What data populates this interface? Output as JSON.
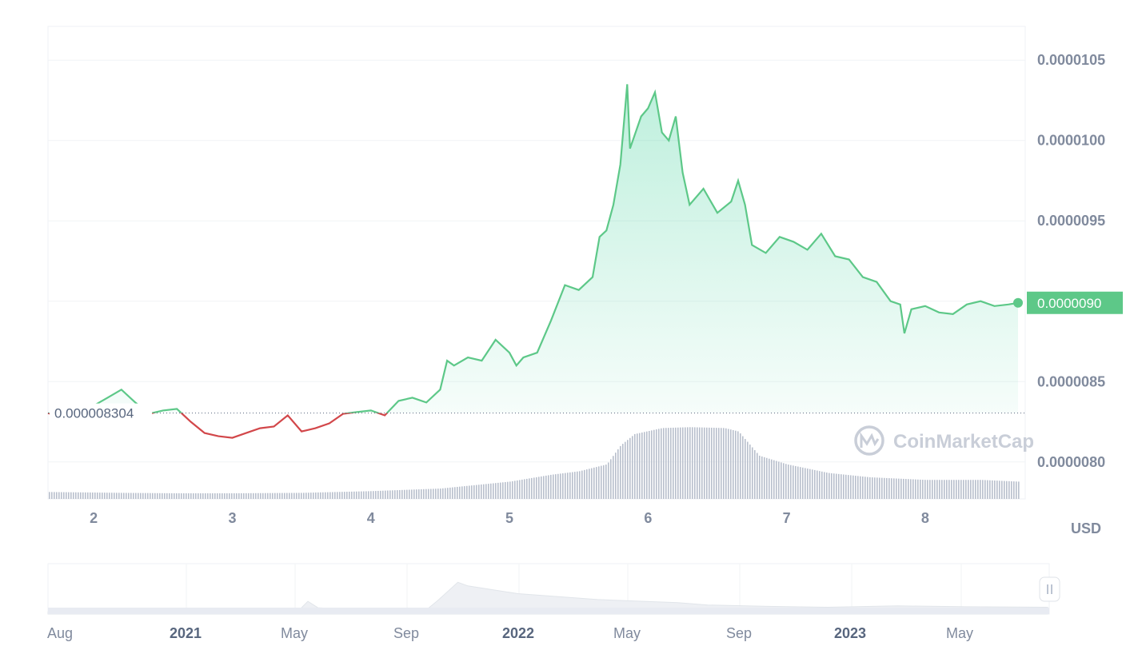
{
  "chart_data": {
    "type": "line",
    "currency": "USD",
    "watermark": "CoinMarketCap",
    "reference_line_value": 8.304e-06,
    "reference_label": "0.000008304",
    "current_price_label": "0.0000090",
    "y_ticks": [
      "0.0000105",
      "0.0000100",
      "0.0000095",
      "0.0000090",
      "0.0000085",
      "0.0000080"
    ],
    "y_tick_values": [
      1.05e-05,
      1e-05,
      9.5e-06,
      9e-06,
      8.5e-06,
      8e-06
    ],
    "ylim": [
      7.77e-06,
      1.071e-05
    ],
    "x_ticks": [
      "2",
      "3",
      "4",
      "5",
      "6",
      "7",
      "8"
    ],
    "x_tick_values": [
      2,
      3,
      4,
      5,
      6,
      7,
      8
    ],
    "xlim": [
      1.67,
      8.67
    ],
    "series": [
      {
        "values": [
          [
            1.67,
            8.304e-06
          ],
          [
            1.8,
            8.27e-06
          ],
          [
            2.0,
            8.35e-06
          ],
          [
            2.1,
            8.4e-06
          ],
          [
            2.2,
            8.45e-06
          ],
          [
            2.3,
            8.37e-06
          ],
          [
            2.4,
            8.3e-06
          ],
          [
            2.5,
            8.32e-06
          ],
          [
            2.6,
            8.33e-06
          ],
          [
            2.7,
            8.25e-06
          ],
          [
            2.8,
            8.18e-06
          ],
          [
            2.9,
            8.16e-06
          ],
          [
            3.0,
            8.15e-06
          ],
          [
            3.1,
            8.18e-06
          ],
          [
            3.2,
            8.21e-06
          ],
          [
            3.3,
            8.22e-06
          ],
          [
            3.4,
            8.29e-06
          ],
          [
            3.5,
            8.19e-06
          ],
          [
            3.6,
            8.21e-06
          ],
          [
            3.7,
            8.24e-06
          ],
          [
            3.8,
            8.3e-06
          ],
          [
            3.9,
            8.31e-06
          ],
          [
            4.0,
            8.32e-06
          ],
          [
            4.1,
            8.29e-06
          ],
          [
            4.2,
            8.38e-06
          ],
          [
            4.3,
            8.4e-06
          ],
          [
            4.4,
            8.37e-06
          ],
          [
            4.5,
            8.45e-06
          ],
          [
            4.55,
            8.63e-06
          ],
          [
            4.6,
            8.6e-06
          ],
          [
            4.7,
            8.65e-06
          ],
          [
            4.8,
            8.63e-06
          ],
          [
            4.9,
            8.76e-06
          ],
          [
            5.0,
            8.68e-06
          ],
          [
            5.05,
            8.6e-06
          ],
          [
            5.1,
            8.65e-06
          ],
          [
            5.2,
            8.68e-06
          ],
          [
            5.3,
            8.88e-06
          ],
          [
            5.4,
            9.1e-06
          ],
          [
            5.5,
            9.07e-06
          ],
          [
            5.6,
            9.15e-06
          ],
          [
            5.65,
            9.4e-06
          ],
          [
            5.7,
            9.44e-06
          ],
          [
            5.75,
            9.6e-06
          ],
          [
            5.8,
            9.85e-06
          ],
          [
            5.85,
            1.035e-05
          ],
          [
            5.87,
            9.95e-06
          ],
          [
            5.95,
            1.015e-05
          ],
          [
            6.0,
            1.02e-05
          ],
          [
            6.05,
            1.03e-05
          ],
          [
            6.1,
            1.005e-05
          ],
          [
            6.15,
            1e-05
          ],
          [
            6.2,
            1.015e-05
          ],
          [
            6.25,
            9.8e-06
          ],
          [
            6.3,
            9.6e-06
          ],
          [
            6.4,
            9.7e-06
          ],
          [
            6.5,
            9.55e-06
          ],
          [
            6.6,
            9.62e-06
          ],
          [
            6.65,
            9.75e-06
          ],
          [
            6.7,
            9.6e-06
          ],
          [
            6.75,
            9.35e-06
          ],
          [
            6.85,
            9.3e-06
          ],
          [
            6.95,
            9.4e-06
          ],
          [
            7.05,
            9.37e-06
          ],
          [
            7.15,
            9.32e-06
          ],
          [
            7.25,
            9.42e-06
          ],
          [
            7.35,
            9.28e-06
          ],
          [
            7.45,
            9.26e-06
          ],
          [
            7.55,
            9.15e-06
          ],
          [
            7.65,
            9.12e-06
          ],
          [
            7.75,
            9e-06
          ],
          [
            7.82,
            8.98e-06
          ],
          [
            7.85,
            8.8e-06
          ],
          [
            7.9,
            8.95e-06
          ],
          [
            8.0,
            8.97e-06
          ],
          [
            8.1,
            8.93e-06
          ],
          [
            8.2,
            8.92e-06
          ],
          [
            8.3,
            8.98e-06
          ],
          [
            8.4,
            9e-06
          ],
          [
            8.5,
            8.97e-06
          ],
          [
            8.6,
            8.98e-06
          ],
          [
            8.67,
            8.99e-06
          ]
        ]
      }
    ],
    "volume": [
      [
        1.67,
        0.08
      ],
      [
        2.2,
        0.07
      ],
      [
        2.6,
        0.065
      ],
      [
        3.0,
        0.065
      ],
      [
        3.5,
        0.07
      ],
      [
        4.0,
        0.09
      ],
      [
        4.5,
        0.12
      ],
      [
        5.0,
        0.2
      ],
      [
        5.3,
        0.28
      ],
      [
        5.5,
        0.32
      ],
      [
        5.7,
        0.4
      ],
      [
        5.8,
        0.62
      ],
      [
        5.9,
        0.75
      ],
      [
        6.1,
        0.82
      ],
      [
        6.3,
        0.83
      ],
      [
        6.55,
        0.82
      ],
      [
        6.65,
        0.78
      ],
      [
        6.8,
        0.5
      ],
      [
        7.0,
        0.4
      ],
      [
        7.3,
        0.3
      ],
      [
        7.6,
        0.25
      ],
      [
        8.0,
        0.22
      ],
      [
        8.4,
        0.22
      ],
      [
        8.67,
        0.2
      ]
    ],
    "navigator": {
      "labels": [
        {
          "text": "Aug",
          "year": false
        },
        {
          "text": "2021",
          "year": true
        },
        {
          "text": "May",
          "year": false
        },
        {
          "text": "Sep",
          "year": false
        },
        {
          "text": "2022",
          "year": true
        },
        {
          "text": "May",
          "year": false
        },
        {
          "text": "Sep",
          "year": false
        },
        {
          "text": "2023",
          "year": true
        },
        {
          "text": "May",
          "year": false
        }
      ],
      "values": [
        [
          0.0,
          0.05
        ],
        [
          0.22,
          0.05
        ],
        [
          0.25,
          0.06
        ],
        [
          0.26,
          0.28
        ],
        [
          0.27,
          0.14
        ],
        [
          0.3,
          0.1
        ],
        [
          0.38,
          0.12
        ],
        [
          0.39,
          0.3
        ],
        [
          0.41,
          0.7
        ],
        [
          0.42,
          0.62
        ],
        [
          0.47,
          0.45
        ],
        [
          0.55,
          0.32
        ],
        [
          0.63,
          0.25
        ],
        [
          0.66,
          0.2
        ],
        [
          0.72,
          0.17
        ],
        [
          0.78,
          0.15
        ],
        [
          0.85,
          0.18
        ],
        [
          0.92,
          0.16
        ],
        [
          1.0,
          0.15
        ]
      ]
    }
  }
}
